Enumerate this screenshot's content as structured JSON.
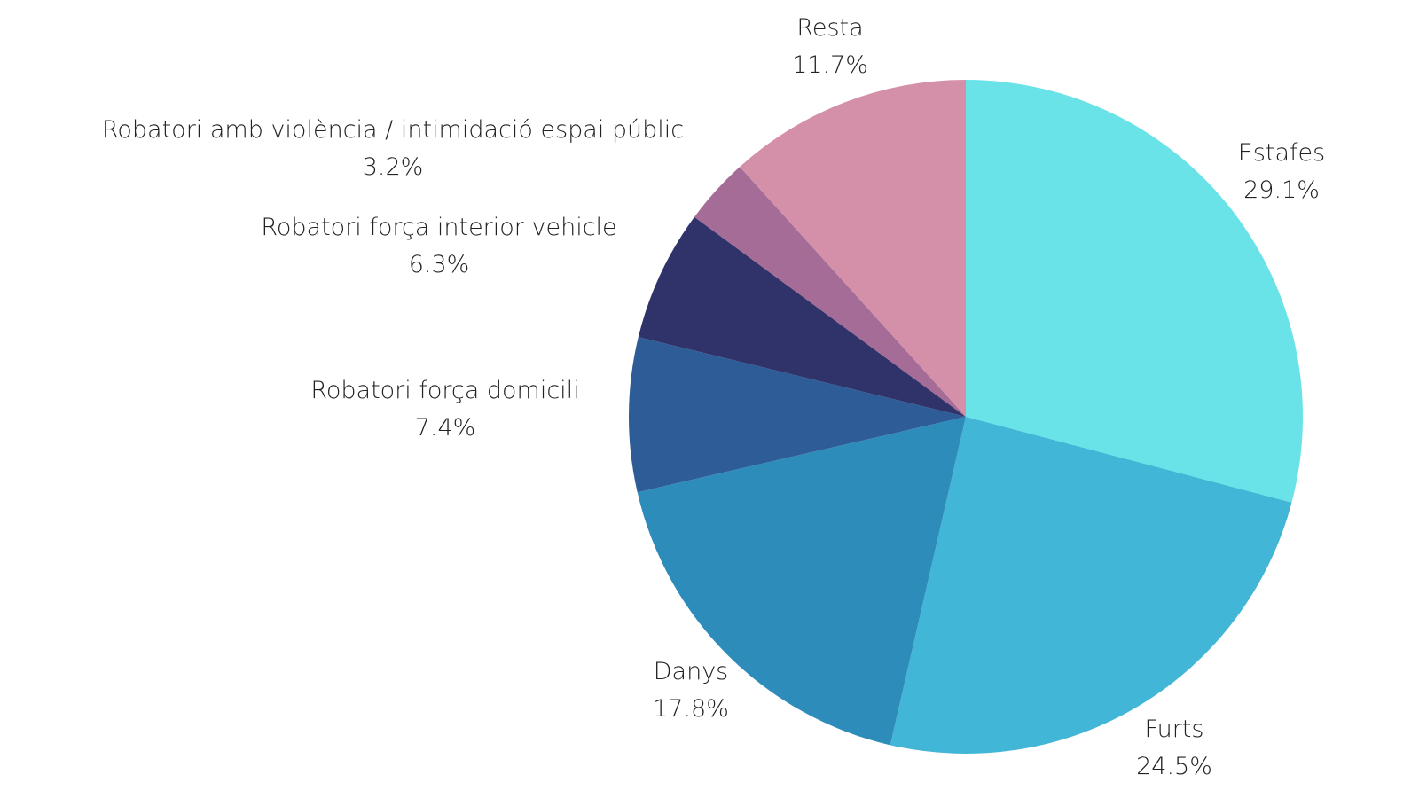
{
  "chart_data": {
    "type": "pie",
    "title": "",
    "start_angle_deg": 0,
    "direction": "clockwise",
    "slices": [
      {
        "name": "Estafes",
        "value": 29.1,
        "label": "29.1%",
        "color": "#69E3E8"
      },
      {
        "name": "Furts",
        "value": 24.5,
        "label": "24.5%",
        "color": "#42B6D6"
      },
      {
        "name": "Danys",
        "value": 17.8,
        "label": "17.8%",
        "color": "#2E8CBA"
      },
      {
        "name": "Robatori força domicili",
        "value": 7.4,
        "label": "7.4%",
        "color": "#2E5C96"
      },
      {
        "name": "Robatori força interior vehicle",
        "value": 6.3,
        "label": "6.3%",
        "color": "#2F336A"
      },
      {
        "name": "Robatori amb violència / intimidació espai públic",
        "value": 3.2,
        "label": "3.2%",
        "color": "#A46C96"
      },
      {
        "name": "Resta",
        "value": 11.7,
        "label": "11.7%",
        "color": "#D48FA9"
      }
    ]
  }
}
